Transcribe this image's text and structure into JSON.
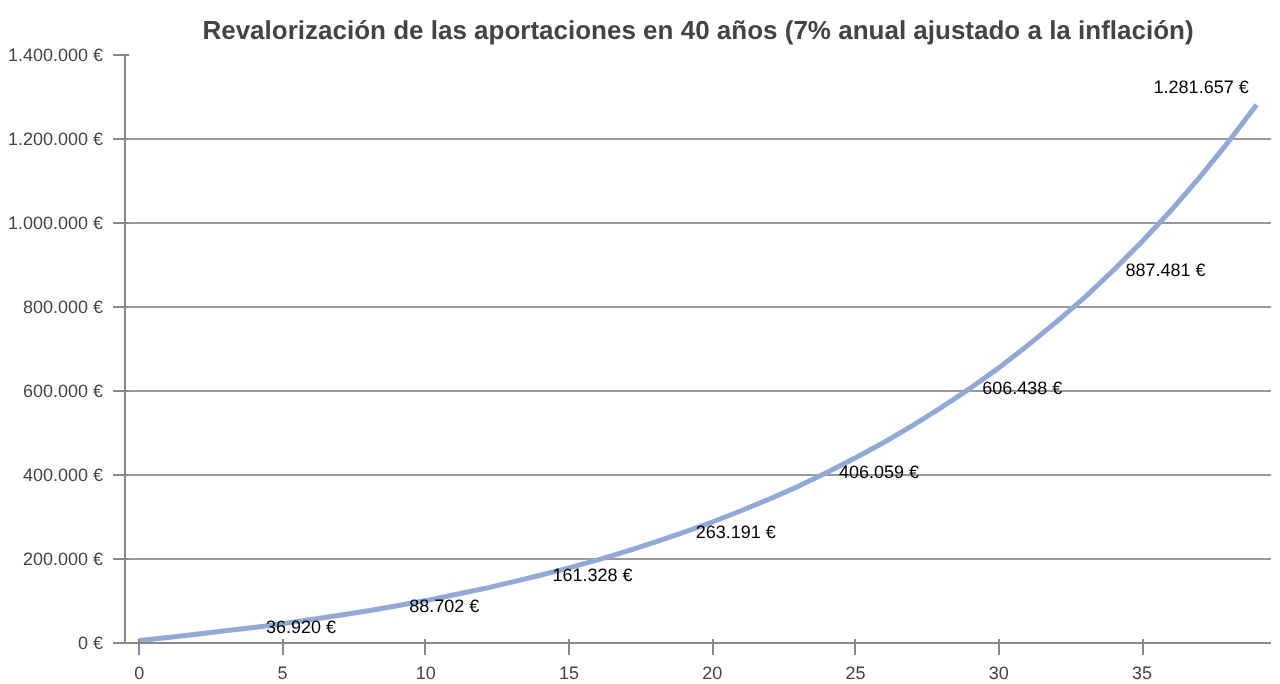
{
  "chart_data": {
    "type": "line",
    "title": "Revalorización de las aportaciones en 40 años (7% anual ajustado a la inflación)",
    "x": [
      0,
      1,
      2,
      3,
      4,
      5,
      6,
      7,
      8,
      9,
      10,
      11,
      12,
      13,
      14,
      15,
      16,
      17,
      18,
      19,
      20,
      21,
      22,
      23,
      24,
      25,
      26,
      27,
      28,
      29,
      30,
      31,
      32,
      33,
      34,
      35,
      36,
      37,
      38,
      39
    ],
    "series": [
      {
        "color": "#92a9d6",
        "values": [
          6000,
          13000,
          21000,
          29000,
          36920,
          46000,
          56000,
          66000,
          77000,
          88702,
          101000,
          115000,
          129000,
          145000,
          161328,
          179000,
          198000,
          218000,
          240000,
          263191,
          288000,
          315000,
          343000,
          373000,
          406059,
          441000,
          478000,
          518000,
          561000,
          606438,
          655000,
          708000,
          764000,
          823000,
          887481,
          956000,
          1029000,
          1108000,
          1192000,
          1281657
        ],
        "value_labels": [
          null,
          null,
          null,
          null,
          "36.920 €",
          null,
          null,
          null,
          null,
          "88.702 €",
          null,
          null,
          null,
          null,
          "161.328 €",
          null,
          null,
          null,
          null,
          "263.191 €",
          null,
          null,
          null,
          null,
          "406.059 €",
          null,
          null,
          null,
          null,
          "606.438 €",
          null,
          null,
          null,
          null,
          "887.481 €",
          null,
          null,
          null,
          null,
          "1.281.657 €"
        ]
      }
    ],
    "xlim": [
      -0.5,
      39.5
    ],
    "xticks": [
      0,
      5,
      10,
      15,
      20,
      25,
      30,
      35
    ],
    "ylim": [
      0,
      1400000
    ],
    "yticks": [
      {
        "value": 0,
        "label": "0 €"
      },
      {
        "value": 200000,
        "label": "200.000 €"
      },
      {
        "value": 400000,
        "label": "400.000 €"
      },
      {
        "value": 600000,
        "label": "600.000 €"
      },
      {
        "value": 800000,
        "label": "800.000 €"
      },
      {
        "value": 1000000,
        "label": "1.000.000 €"
      },
      {
        "value": 1200000,
        "label": "1.200.000 €"
      },
      {
        "value": 1400000,
        "label": "1.400.000 €"
      }
    ],
    "grid": "y",
    "line_style": "solid"
  }
}
